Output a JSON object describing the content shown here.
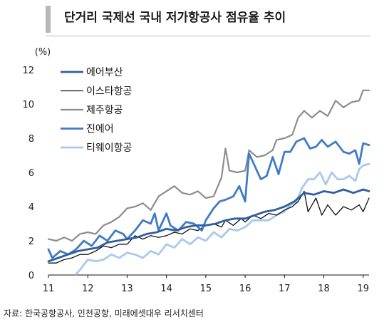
{
  "title": "단거리 국제선 국내 저가항공사 점유율 추이",
  "source": "자료: 한국공항공사, 인천공항, 미래에셋대우 리서치센터",
  "chart_data": {
    "type": "line",
    "ylabel": "(%)",
    "ylim": [
      0,
      12
    ],
    "yticks": [
      0,
      2,
      4,
      6,
      8,
      10,
      12
    ],
    "xlim": [
      11,
      19.15
    ],
    "xticks": [
      11,
      12,
      13,
      14,
      15,
      16,
      17,
      18,
      19
    ],
    "legend_position": "top-left",
    "series": [
      {
        "name": "에어부산",
        "color": "#2e5f9e",
        "width": 2.8,
        "points": [
          [
            11,
            0.8
          ],
          [
            11.25,
            1.0
          ],
          [
            11.5,
            1.2
          ],
          [
            11.75,
            1.4
          ],
          [
            12,
            1.5
          ],
          [
            12.25,
            1.6
          ],
          [
            12.5,
            1.9
          ],
          [
            12.75,
            2.0
          ],
          [
            13,
            2.1
          ],
          [
            13.25,
            2.2
          ],
          [
            13.5,
            2.4
          ],
          [
            13.75,
            2.5
          ],
          [
            14,
            2.7
          ],
          [
            14.25,
            2.6
          ],
          [
            14.5,
            2.8
          ],
          [
            14.75,
            2.9
          ],
          [
            15,
            2.9
          ],
          [
            15.25,
            3.0
          ],
          [
            15.5,
            3.2
          ],
          [
            15.75,
            3.3
          ],
          [
            16,
            3.3
          ],
          [
            16.25,
            3.5
          ],
          [
            16.5,
            3.7
          ],
          [
            16.75,
            3.8
          ],
          [
            17,
            4.0
          ],
          [
            17.25,
            4.3
          ],
          [
            17.5,
            4.8
          ],
          [
            17.75,
            4.7
          ],
          [
            18,
            4.9
          ],
          [
            18.25,
            4.8
          ],
          [
            18.5,
            5.0
          ],
          [
            18.75,
            4.8
          ],
          [
            19,
            5.0
          ],
          [
            19.15,
            4.9
          ]
        ]
      },
      {
        "name": "이스타항공",
        "color": "#111111",
        "width": 1.3,
        "points": [
          [
            11,
            0.7
          ],
          [
            11.2,
            0.7
          ],
          [
            11.4,
            0.9
          ],
          [
            11.6,
            1.0
          ],
          [
            11.8,
            1.2
          ],
          [
            12,
            1.2
          ],
          [
            12.2,
            1.4
          ],
          [
            12.4,
            1.7
          ],
          [
            12.6,
            1.6
          ],
          [
            12.8,
            1.8
          ],
          [
            13,
            1.8
          ],
          [
            13.2,
            2.3
          ],
          [
            13.4,
            2.1
          ],
          [
            13.6,
            2.3
          ],
          [
            13.8,
            2.2
          ],
          [
            14,
            2.3
          ],
          [
            14.2,
            2.5
          ],
          [
            14.4,
            2.4
          ],
          [
            14.6,
            2.7
          ],
          [
            14.8,
            2.6
          ],
          [
            15,
            2.9
          ],
          [
            15.2,
            3.0
          ],
          [
            15.4,
            2.8
          ],
          [
            15.5,
            3.2
          ],
          [
            15.7,
            2.9
          ],
          [
            15.9,
            3.3
          ],
          [
            16,
            3.1
          ],
          [
            16.2,
            3.5
          ],
          [
            16.4,
            3.3
          ],
          [
            16.6,
            3.6
          ],
          [
            16.8,
            3.5
          ],
          [
            17,
            3.8
          ],
          [
            17.2,
            4.0
          ],
          [
            17.35,
            4.3
          ],
          [
            17.5,
            4.9
          ],
          [
            17.6,
            3.7
          ],
          [
            17.8,
            4.5
          ],
          [
            17.95,
            3.5
          ],
          [
            18.1,
            4.1
          ],
          [
            18.3,
            3.5
          ],
          [
            18.5,
            4.0
          ],
          [
            18.7,
            3.8
          ],
          [
            18.9,
            4.1
          ],
          [
            19,
            3.7
          ],
          [
            19.15,
            4.5
          ]
        ]
      },
      {
        "name": "제주항공",
        "color": "#8c8c8c",
        "width": 2.2,
        "points": [
          [
            11,
            2.1
          ],
          [
            11.2,
            2.0
          ],
          [
            11.4,
            2.2
          ],
          [
            11.6,
            2.0
          ],
          [
            11.8,
            2.4
          ],
          [
            12,
            2.5
          ],
          [
            12.2,
            2.4
          ],
          [
            12.4,
            2.9
          ],
          [
            12.6,
            3.1
          ],
          [
            12.8,
            3.4
          ],
          [
            13,
            3.9
          ],
          [
            13.2,
            4.0
          ],
          [
            13.4,
            4.2
          ],
          [
            13.6,
            3.8
          ],
          [
            13.8,
            4.6
          ],
          [
            14,
            4.9
          ],
          [
            14.2,
            5.2
          ],
          [
            14.4,
            4.8
          ],
          [
            14.6,
            4.7
          ],
          [
            14.8,
            4.9
          ],
          [
            15,
            4.5
          ],
          [
            15.2,
            4.6
          ],
          [
            15.4,
            5.7
          ],
          [
            15.5,
            7.4
          ],
          [
            15.6,
            6.1
          ],
          [
            15.8,
            6.0
          ],
          [
            16,
            6.1
          ],
          [
            16.1,
            7.3
          ],
          [
            16.3,
            6.9
          ],
          [
            16.5,
            7.0
          ],
          [
            16.7,
            7.3
          ],
          [
            16.8,
            7.9
          ],
          [
            17,
            8.0
          ],
          [
            17.2,
            8.2
          ],
          [
            17.35,
            9.2
          ],
          [
            17.5,
            9.6
          ],
          [
            17.7,
            9.2
          ],
          [
            17.9,
            9.6
          ],
          [
            18.1,
            9.3
          ],
          [
            18.3,
            10.2
          ],
          [
            18.5,
            9.8
          ],
          [
            18.7,
            10.1
          ],
          [
            18.9,
            10.2
          ],
          [
            19,
            10.8
          ],
          [
            19.15,
            10.8
          ]
        ]
      },
      {
        "name": "진에어",
        "color": "#3f7bc7",
        "width": 2.8,
        "points": [
          [
            11,
            1.5
          ],
          [
            11.1,
            1.0
          ],
          [
            11.3,
            1.4
          ],
          [
            11.5,
            1.2
          ],
          [
            11.7,
            1.5
          ],
          [
            11.9,
            2.0
          ],
          [
            12.1,
            1.7
          ],
          [
            12.3,
            2.3
          ],
          [
            12.5,
            2.0
          ],
          [
            12.7,
            2.6
          ],
          [
            12.9,
            2.4
          ],
          [
            13,
            2.1
          ],
          [
            13.2,
            2.6
          ],
          [
            13.4,
            3.2
          ],
          [
            13.6,
            3.0
          ],
          [
            13.7,
            3.6
          ],
          [
            13.8,
            2.6
          ],
          [
            14,
            3.6
          ],
          [
            14.1,
            2.9
          ],
          [
            14.3,
            2.6
          ],
          [
            14.5,
            3.1
          ],
          [
            14.7,
            3.0
          ],
          [
            14.9,
            2.6
          ],
          [
            15,
            3.2
          ],
          [
            15.2,
            3.9
          ],
          [
            15.35,
            4.3
          ],
          [
            15.5,
            4.4
          ],
          [
            15.7,
            4.6
          ],
          [
            15.85,
            5.2
          ],
          [
            16,
            4.3
          ],
          [
            16.1,
            7.1
          ],
          [
            16.3,
            6.1
          ],
          [
            16.4,
            5.6
          ],
          [
            16.55,
            5.8
          ],
          [
            16.7,
            6.9
          ],
          [
            16.85,
            5.9
          ],
          [
            17,
            7.2
          ],
          [
            17.15,
            7.2
          ],
          [
            17.3,
            7.8
          ],
          [
            17.5,
            8.0
          ],
          [
            17.65,
            7.4
          ],
          [
            17.8,
            7.5
          ],
          [
            17.95,
            7.9
          ],
          [
            18.1,
            7.5
          ],
          [
            18.3,
            7.8
          ],
          [
            18.5,
            7.2
          ],
          [
            18.65,
            7.1
          ],
          [
            18.8,
            7.3
          ],
          [
            18.9,
            6.5
          ],
          [
            19,
            7.7
          ],
          [
            19.15,
            7.6
          ]
        ]
      },
      {
        "name": "티웨이항공",
        "color": "#a9c9ec",
        "width": 2.8,
        "points": [
          [
            11.7,
            0.05
          ],
          [
            11.8,
            0.3
          ],
          [
            11.9,
            0.6
          ],
          [
            12,
            0.9
          ],
          [
            12.2,
            0.8
          ],
          [
            12.4,
            0.9
          ],
          [
            12.6,
            1.2
          ],
          [
            12.8,
            1.0
          ],
          [
            13,
            1.3
          ],
          [
            13.2,
            1.2
          ],
          [
            13.4,
            1.0
          ],
          [
            13.6,
            1.4
          ],
          [
            13.8,
            1.2
          ],
          [
            14,
            1.8
          ],
          [
            14.2,
            1.6
          ],
          [
            14.4,
            2.1
          ],
          [
            14.6,
            1.8
          ],
          [
            14.8,
            2.2
          ],
          [
            15,
            2.0
          ],
          [
            15.2,
            2.5
          ],
          [
            15.4,
            2.2
          ],
          [
            15.6,
            2.7
          ],
          [
            15.8,
            2.6
          ],
          [
            16,
            2.8
          ],
          [
            16.2,
            3.2
          ],
          [
            16.4,
            3.2
          ],
          [
            16.6,
            3.2
          ],
          [
            16.8,
            3.5
          ],
          [
            17,
            3.7
          ],
          [
            17.15,
            4.1
          ],
          [
            17.3,
            4.3
          ],
          [
            17.45,
            5.1
          ],
          [
            17.6,
            5.6
          ],
          [
            17.75,
            5.6
          ],
          [
            17.9,
            6.0
          ],
          [
            18.05,
            5.3
          ],
          [
            18.2,
            6.0
          ],
          [
            18.35,
            5.6
          ],
          [
            18.5,
            5.6
          ],
          [
            18.65,
            5.8
          ],
          [
            18.8,
            5.5
          ],
          [
            18.9,
            6.2
          ],
          [
            19,
            6.4
          ],
          [
            19.15,
            6.5
          ]
        ]
      }
    ]
  }
}
